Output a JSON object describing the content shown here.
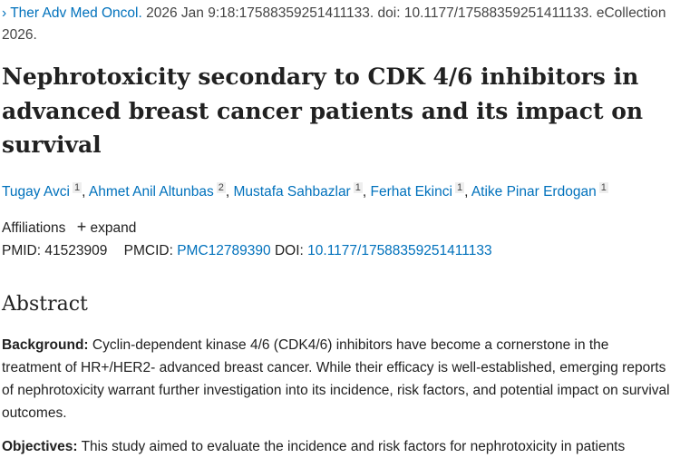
{
  "citation": {
    "journal": "Ther Adv Med Oncol.",
    "details": "2026 Jan 9:18:17588359251411133. doi: 10.1177/17588359251411133. eCollection 2026."
  },
  "title": "Nephrotoxicity secondary to CDK 4/6 inhibitors in advanced breast cancer patients and its impact on survival",
  "authors": [
    {
      "name": "Tugay Avci",
      "aff": "1"
    },
    {
      "name": "Ahmet Anil Altunbas",
      "aff": "2"
    },
    {
      "name": "Mustafa Sahbazlar",
      "aff": "1"
    },
    {
      "name": "Ferhat Ekinci",
      "aff": "1"
    },
    {
      "name": "Atike Pinar Erdogan",
      "aff": "1"
    }
  ],
  "affiliations": {
    "label": "Affiliations",
    "expand": "expand"
  },
  "ids": {
    "pmid_label": "PMID:",
    "pmid": "41523909",
    "pmcid_label": "PMCID:",
    "pmcid": "PMC12789390",
    "doi_label": "DOI:",
    "doi": "10.1177/17588359251411133"
  },
  "abstract": {
    "heading": "Abstract",
    "background_label": "Background:",
    "background": "Cyclin-dependent kinase 4/6 (CDK4/6) inhibitors have become a cornerstone in the treatment of HR+/HER2- advanced breast cancer. While their efficacy is well-established, emerging reports of nephrotoxicity warrant further investigation into its incidence, risk factors, and potential impact on survival outcomes.",
    "objectives_label": "Objectives:",
    "objectives": "This study aimed to evaluate the incidence and risk factors for nephrotoxicity in patients"
  }
}
